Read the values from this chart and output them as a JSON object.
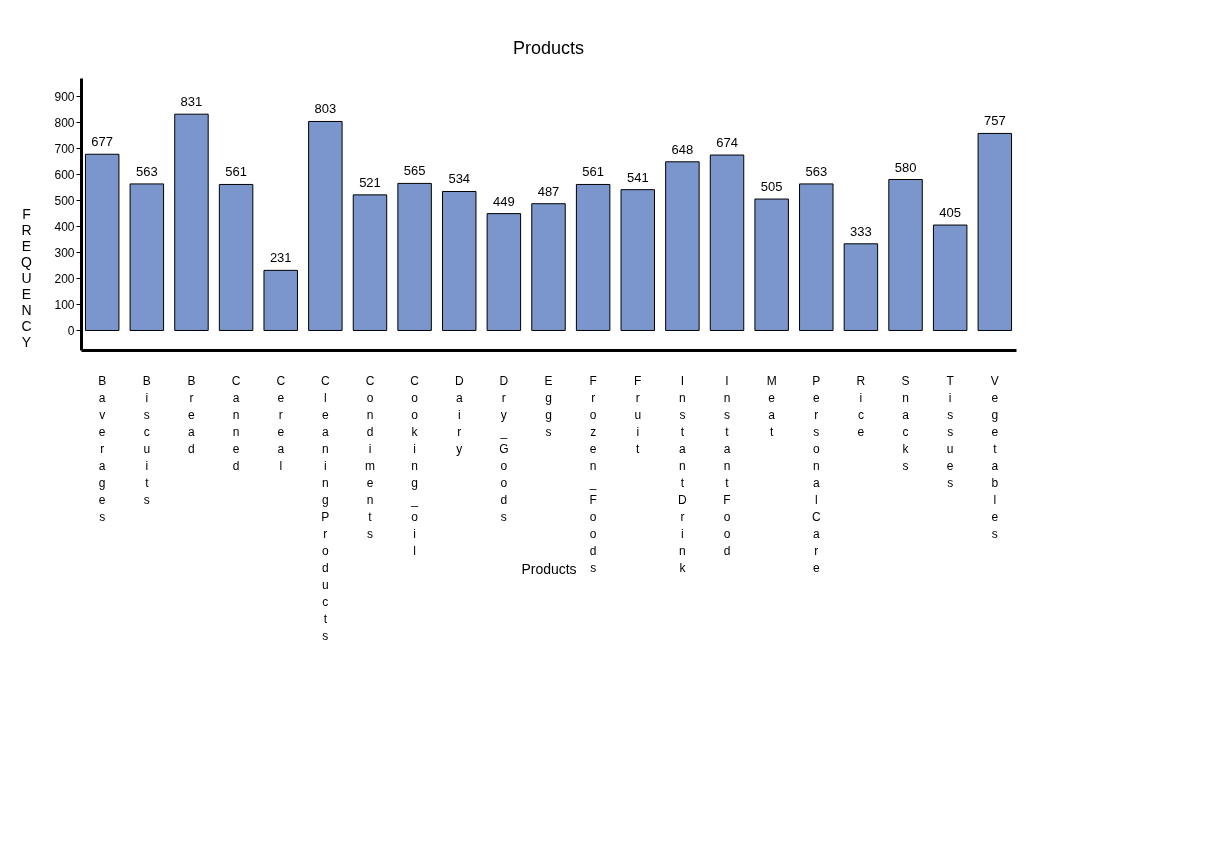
{
  "chart_data": {
    "type": "bar",
    "title": "Products",
    "xlabel": "Products",
    "ylabel": "FREQUENCY",
    "categories": [
      "Baverages",
      "Biscuits",
      "Bread",
      "Canned",
      "Cereal",
      "CleaningProducts",
      "Condiments",
      "Cooking_oil",
      "Dairy",
      "Dry_Goods",
      "Eggs",
      "Frozen_Foods",
      "Fruit",
      "InstantDrink",
      "InstantFood",
      "Meat",
      "PersonalCare",
      "Rice",
      "Snacks",
      "Tissues",
      "Vegetables"
    ],
    "values": [
      677,
      563,
      831,
      561,
      231,
      803,
      521,
      565,
      534,
      449,
      487,
      561,
      541,
      648,
      674,
      505,
      563,
      333,
      580,
      405,
      757
    ],
    "color": "#7b96cc",
    "ylim": [
      -75,
      970
    ],
    "yticks": [
      0,
      100,
      200,
      300,
      400,
      500,
      600,
      700,
      800,
      900
    ],
    "data_labels": true,
    "grid": false
  }
}
